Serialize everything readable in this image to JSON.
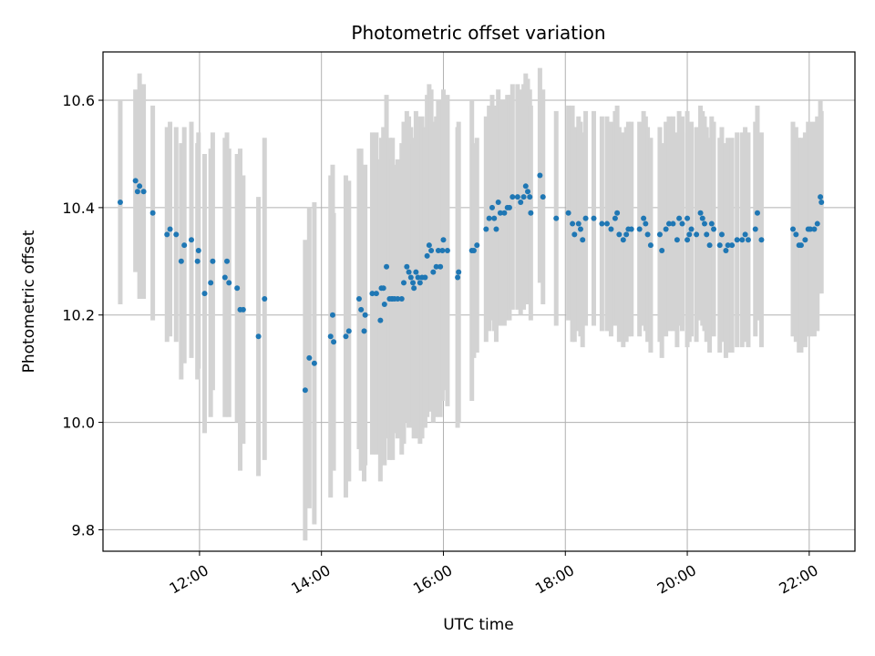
{
  "chart_data": {
    "type": "scatter",
    "title": "Photometric offset variation",
    "xlabel": "UTC time",
    "ylabel": "Photometric offset",
    "x_is_time": true,
    "xlim": [
      "10:25",
      "22:45"
    ],
    "ylim": [
      9.76,
      10.69
    ],
    "x_ticks": [
      "12:00",
      "14:00",
      "16:00",
      "18:00",
      "20:00",
      "22:00"
    ],
    "y_ticks": [
      "9.8",
      "10.0",
      "10.2",
      "10.4",
      "10.6"
    ],
    "grid": true,
    "point_color": "#1f77b4",
    "errorbar_color": "#d3d3d3",
    "series": [
      {
        "points": [
          [
            "10:42",
            10.41,
            0.19
          ],
          [
            "10:57",
            10.45,
            0.17
          ],
          [
            "10:59",
            10.43,
            0.14
          ],
          [
            "11:01",
            10.44,
            0.21
          ],
          [
            "11:05",
            10.43,
            0.2
          ],
          [
            "11:14",
            10.39,
            0.2
          ],
          [
            "11:28",
            10.35,
            0.2
          ],
          [
            "11:31",
            10.36,
            0.2
          ],
          [
            "11:37",
            10.35,
            0.2
          ],
          [
            "11:42",
            10.3,
            0.22
          ],
          [
            "11:45",
            10.33,
            0.22
          ],
          [
            "11:52",
            10.34,
            0.22
          ],
          [
            "11:58",
            10.3,
            0.22
          ],
          [
            "11:59",
            10.32,
            0.22
          ],
          [
            "12:05",
            10.24,
            0.26
          ],
          [
            "12:11",
            10.26,
            0.25
          ],
          [
            "12:13",
            10.3,
            0.24
          ],
          [
            "12:25",
            10.27,
            0.26
          ],
          [
            "12:27",
            10.3,
            0.24
          ],
          [
            "12:29",
            10.26,
            0.25
          ],
          [
            "12:37",
            10.25,
            0.25
          ],
          [
            "12:40",
            10.21,
            0.3
          ],
          [
            "12:43",
            10.21,
            0.25
          ],
          [
            "12:58",
            10.16,
            0.26
          ],
          [
            "13:04",
            10.23,
            0.3
          ],
          [
            "13:44",
            10.06,
            0.28
          ],
          [
            "13:48",
            10.12,
            0.28
          ],
          [
            "13:53",
            10.11,
            0.3
          ],
          [
            "14:09",
            10.16,
            0.3
          ],
          [
            "14:11",
            10.2,
            0.28
          ],
          [
            "14:12",
            10.15,
            0.24
          ],
          [
            "14:24",
            10.16,
            0.3
          ],
          [
            "14:27",
            10.17,
            0.28
          ],
          [
            "14:37",
            10.23,
            0.28
          ],
          [
            "14:39",
            10.21,
            0.3
          ],
          [
            "14:42",
            10.17,
            0.28
          ],
          [
            "14:43",
            10.2,
            0.28
          ],
          [
            "14:50",
            10.24,
            0.3
          ],
          [
            "14:54",
            10.24,
            0.3
          ],
          [
            "14:58",
            10.19,
            0.3
          ],
          [
            "14:59",
            10.25,
            0.28
          ],
          [
            "15:01",
            10.25,
            0.3
          ],
          [
            "15:02",
            10.22,
            0.3
          ],
          [
            "15:04",
            10.29,
            0.32
          ],
          [
            "15:07",
            10.23,
            0.3
          ],
          [
            "15:09",
            10.23,
            0.26
          ],
          [
            "15:10",
            10.23,
            0.3
          ],
          [
            "15:12",
            10.23,
            0.25
          ],
          [
            "15:15",
            10.23,
            0.26
          ],
          [
            "15:19",
            10.23,
            0.29
          ],
          [
            "15:21",
            10.26,
            0.3
          ],
          [
            "15:24",
            10.29,
            0.29
          ],
          [
            "15:26",
            10.28,
            0.29
          ],
          [
            "15:28",
            10.27,
            0.28
          ],
          [
            "15:30",
            10.26,
            0.26
          ],
          [
            "15:31",
            10.25,
            0.28
          ],
          [
            "15:33",
            10.28,
            0.3
          ],
          [
            "15:35",
            10.27,
            0.3
          ],
          [
            "15:37",
            10.26,
            0.3
          ],
          [
            "15:39",
            10.27,
            0.3
          ],
          [
            "15:42",
            10.27,
            0.28
          ],
          [
            "15:44",
            10.31,
            0.3
          ],
          [
            "15:46",
            10.33,
            0.3
          ],
          [
            "15:48",
            10.32,
            0.3
          ],
          [
            "15:50",
            10.28,
            0.28
          ],
          [
            "15:53",
            10.29,
            0.28
          ],
          [
            "15:55",
            10.32,
            0.28
          ],
          [
            "15:57",
            10.29,
            0.28
          ],
          [
            "15:59",
            10.32,
            0.28
          ],
          [
            "16:00",
            10.34,
            0.28
          ],
          [
            "16:04",
            10.32,
            0.29
          ],
          [
            "16:14",
            10.27,
            0.28
          ],
          [
            "16:15",
            10.28,
            0.28
          ],
          [
            "16:28",
            10.32,
            0.28
          ],
          [
            "16:30",
            10.32,
            0.2
          ],
          [
            "16:33",
            10.33,
            0.2
          ],
          [
            "16:42",
            10.36,
            0.21
          ],
          [
            "16:45",
            10.38,
            0.21
          ],
          [
            "16:48",
            10.4,
            0.21
          ],
          [
            "16:50",
            10.38,
            0.21
          ],
          [
            "16:52",
            10.36,
            0.21
          ],
          [
            "16:54",
            10.41,
            0.21
          ],
          [
            "16:56",
            10.39,
            0.21
          ],
          [
            "17:00",
            10.39,
            0.21
          ],
          [
            "17:03",
            10.4,
            0.21
          ],
          [
            "17:05",
            10.4,
            0.21
          ],
          [
            "17:08",
            10.42,
            0.21
          ],
          [
            "17:13",
            10.42,
            0.21
          ],
          [
            "17:16",
            10.41,
            0.21
          ],
          [
            "17:19",
            10.42,
            0.21
          ],
          [
            "17:21",
            10.44,
            0.21
          ],
          [
            "17:23",
            10.43,
            0.21
          ],
          [
            "17:25",
            10.42,
            0.2
          ],
          [
            "17:26",
            10.39,
            0.2
          ],
          [
            "17:35",
            10.46,
            0.2
          ],
          [
            "17:38",
            10.42,
            0.2
          ],
          [
            "17:51",
            10.38,
            0.2
          ],
          [
            "18:03",
            10.39,
            0.2
          ],
          [
            "18:07",
            10.37,
            0.22
          ],
          [
            "18:09",
            10.35,
            0.2
          ],
          [
            "18:13",
            10.37,
            0.2
          ],
          [
            "18:15",
            10.36,
            0.2
          ],
          [
            "18:17",
            10.34,
            0.2
          ],
          [
            "18:20",
            10.38,
            0.2
          ],
          [
            "18:28",
            10.38,
            0.2
          ],
          [
            "18:36",
            10.37,
            0.2
          ],
          [
            "18:41",
            10.37,
            0.2
          ],
          [
            "18:45",
            10.36,
            0.2
          ],
          [
            "18:49",
            10.38,
            0.2
          ],
          [
            "18:51",
            10.39,
            0.2
          ],
          [
            "18:53",
            10.35,
            0.2
          ],
          [
            "18:57",
            10.34,
            0.2
          ],
          [
            "19:00",
            10.35,
            0.2
          ],
          [
            "19:02",
            10.36,
            0.2
          ],
          [
            "19:05",
            10.36,
            0.2
          ],
          [
            "19:13",
            10.36,
            0.2
          ],
          [
            "19:17",
            10.38,
            0.2
          ],
          [
            "19:19",
            10.37,
            0.2
          ],
          [
            "19:21",
            10.35,
            0.2
          ],
          [
            "19:24",
            10.33,
            0.2
          ],
          [
            "19:33",
            10.35,
            0.2
          ],
          [
            "19:35",
            10.32,
            0.2
          ],
          [
            "19:39",
            10.36,
            0.2
          ],
          [
            "19:42",
            10.37,
            0.2
          ],
          [
            "19:46",
            10.37,
            0.2
          ],
          [
            "19:50",
            10.34,
            0.2
          ],
          [
            "19:52",
            10.38,
            0.2
          ],
          [
            "19:55",
            10.37,
            0.2
          ],
          [
            "20:00",
            10.34,
            0.2
          ],
          [
            "20:02",
            10.35,
            0.2
          ],
          [
            "20:04",
            10.36,
            0.2
          ],
          [
            "20:00",
            10.38,
            0.2
          ],
          [
            "20:09",
            10.35,
            0.2
          ],
          [
            "20:13",
            10.39,
            0.2
          ],
          [
            "20:15",
            10.38,
            0.2
          ],
          [
            "20:17",
            10.37,
            0.2
          ],
          [
            "20:19",
            10.35,
            0.2
          ],
          [
            "20:22",
            10.33,
            0.2
          ],
          [
            "20:24",
            10.37,
            0.2
          ],
          [
            "20:26",
            10.36,
            0.2
          ],
          [
            "20:32",
            10.33,
            0.2
          ],
          [
            "20:34",
            10.35,
            0.2
          ],
          [
            "20:38",
            10.32,
            0.2
          ],
          [
            "20:40",
            10.33,
            0.2
          ],
          [
            "20:44",
            10.33,
            0.2
          ],
          [
            "20:49",
            10.34,
            0.2
          ],
          [
            "20:54",
            10.34,
            0.2
          ],
          [
            "20:57",
            10.35,
            0.2
          ],
          [
            "21:00",
            10.34,
            0.2
          ],
          [
            "21:07",
            10.36,
            0.2
          ],
          [
            "21:09",
            10.39,
            0.2
          ],
          [
            "21:13",
            10.34,
            0.2
          ],
          [
            "21:44",
            10.36,
            0.2
          ],
          [
            "21:47",
            10.35,
            0.2
          ],
          [
            "21:50",
            10.33,
            0.2
          ],
          [
            "21:52",
            10.33,
            0.2
          ],
          [
            "21:56",
            10.34,
            0.2
          ],
          [
            "21:59",
            10.36,
            0.2
          ],
          [
            "22:01",
            10.36,
            0.2
          ],
          [
            "22:05",
            10.36,
            0.2
          ],
          [
            "22:08",
            10.37,
            0.2
          ],
          [
            "22:11",
            10.42,
            0.18
          ],
          [
            "22:12",
            10.41,
            0.17
          ]
        ]
      }
    ]
  }
}
